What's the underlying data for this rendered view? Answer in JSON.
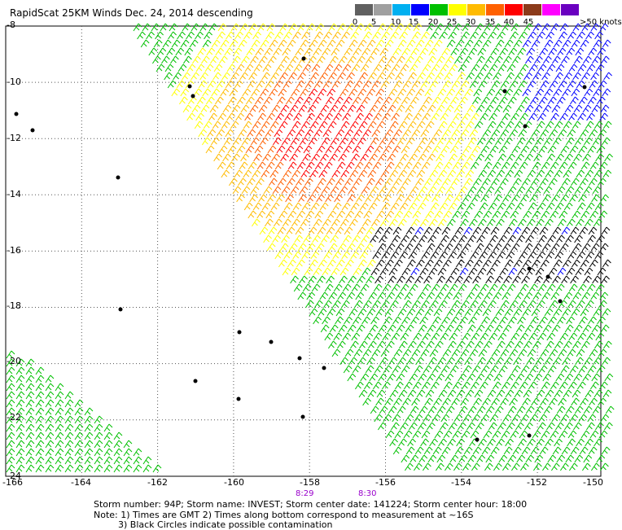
{
  "title": "RapidScat 25KM Winds Dec. 24, 2014 descending",
  "legend": {
    "colors": [
      "#606060",
      "#a0a0a0",
      "#00b0f0",
      "#0000ff",
      "#00c000",
      "#ffff00",
      "#ffbb00",
      "#ff6000",
      "#ff0000",
      "#8b3a1a",
      "#ff00ff",
      "#6a00c0"
    ],
    "labels": [
      "0",
      "5",
      "10",
      "15",
      "20",
      "25",
      "30",
      "35",
      "40",
      "45"
    ],
    "unit": ">50 knots"
  },
  "axes": {
    "lat_labels": [
      "-8",
      "-10",
      "-12",
      "-14",
      "-16",
      "-18",
      "-20",
      "-22",
      "-24"
    ],
    "lon_labels": [
      "-166",
      "-164",
      "-162",
      "-160",
      "-158",
      "-156",
      "-154",
      "-152",
      "-150"
    ]
  },
  "time_marks": [
    "8:29",
    "8:30"
  ],
  "footer": {
    "line1": "Storm number: 94P;  Storm name: INVEST;  Storm center date: 141224;  Storm center hour: 18:00",
    "line2": "Note: 1) Times are GMT  2) Times along bottom correspond to measurement at ~16S",
    "line3": "3) Black Circles indicate possible contamination"
  }
}
